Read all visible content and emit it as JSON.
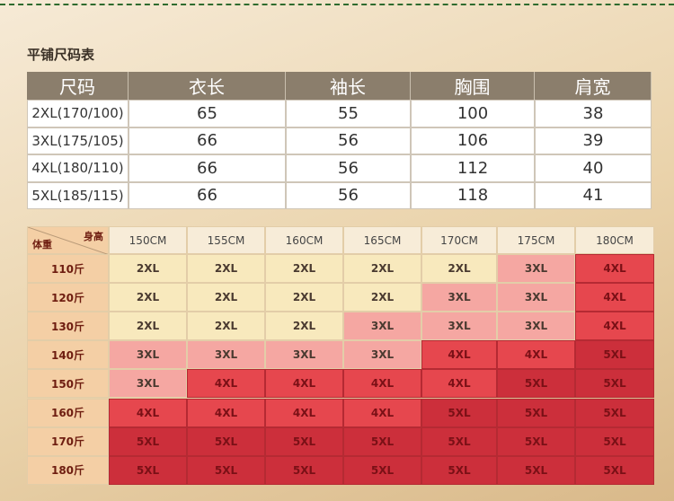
{
  "title": "平铺尺码表",
  "size_table": {
    "header": [
      "尺码",
      "衣长",
      "袖长",
      "胸围",
      "肩宽"
    ],
    "rows": [
      [
        "2XL(170/100)",
        65,
        55,
        100,
        38
      ],
      [
        "3XL(175/105)",
        66,
        56,
        106,
        39
      ],
      [
        "4XL(180/110)",
        66,
        56,
        112,
        40
      ],
      [
        "5XL(185/115)",
        66,
        56,
        118,
        41
      ]
    ]
  },
  "fit_table": {
    "corner_top": "身高",
    "corner_bottom": "体重",
    "heights": [
      "150CM",
      "155CM",
      "160CM",
      "165CM",
      "170CM",
      "175CM",
      "180CM"
    ],
    "weights": [
      "110斤",
      "120斤",
      "130斤",
      "140斤",
      "150斤",
      "160斤",
      "170斤",
      "180斤"
    ],
    "sizes": [
      [
        "2XL",
        "2XL",
        "2XL",
        "2XL",
        "2XL",
        "3XL",
        "4XL"
      ],
      [
        "2XL",
        "2XL",
        "2XL",
        "2XL",
        "3XL",
        "3XL",
        "4XL"
      ],
      [
        "2XL",
        "2XL",
        "2XL",
        "3XL",
        "3XL",
        "3XL",
        "4XL"
      ],
      [
        "3XL",
        "3XL",
        "3XL",
        "3XL",
        "4XL",
        "4XL",
        "5XL"
      ],
      [
        "3XL",
        "4XL",
        "4XL",
        "4XL",
        "4XL",
        "5XL",
        "5XL"
      ],
      [
        "4XL",
        "4XL",
        "4XL",
        "4XL",
        "5XL",
        "5XL",
        "5XL"
      ],
      [
        "5XL",
        "5XL",
        "5XL",
        "5XL",
        "5XL",
        "5XL",
        "5XL"
      ],
      [
        "5XL",
        "5XL",
        "5XL",
        "5XL",
        "5XL",
        "5XL",
        "5XL"
      ]
    ],
    "size_colors": {
      "2XL": "#f8e9bd",
      "3XL": "#f5a7a2",
      "4XL": "#e6474e",
      "5XL": "#cc2f3b"
    }
  }
}
